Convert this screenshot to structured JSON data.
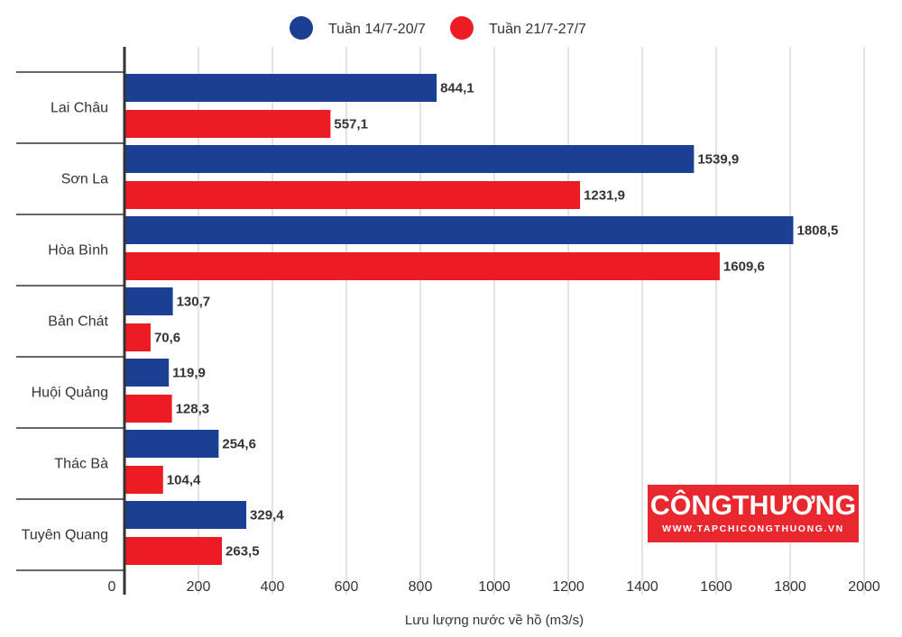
{
  "chart_data": {
    "type": "bar",
    "orientation": "horizontal",
    "categories": [
      "Lai Châu",
      "Sơn La",
      "Hòa Bình",
      "Bản Chát",
      "Huội Quảng",
      "Thác Bà",
      "Tuyên Quang"
    ],
    "series": [
      {
        "name": "Tuần 14/7-20/7",
        "color": "#1a3f93",
        "values": [
          844.1,
          1539.9,
          1808.5,
          130.7,
          119.9,
          254.6,
          329.4
        ],
        "labels": [
          "844,1",
          "1539,9",
          "1808,5",
          "130,7",
          "119,9",
          "254,6",
          "329,4"
        ]
      },
      {
        "name": "Tuần 21/7-27/7",
        "color": "#ed1c24",
        "values": [
          557.1,
          1231.9,
          1609.6,
          70.6,
          128.3,
          104.4,
          263.5
        ],
        "labels": [
          "557,1",
          "1231,9",
          "1609,6",
          "70,6",
          "128,3",
          "104,4",
          "263,5"
        ]
      }
    ],
    "xlabel": "Lưu lượng nước về hồ (m3/s)",
    "xlim": [
      0,
      2000
    ],
    "xticks": [
      0,
      200,
      400,
      600,
      800,
      1000,
      1200,
      1400,
      1600,
      1800,
      2000
    ],
    "xtick_labels": [
      "0",
      "200",
      "400",
      "600",
      "800",
      "1000",
      "1200",
      "1400",
      "1600",
      "1800",
      "2000"
    ],
    "grid": "vertical",
    "legend": "top-center"
  },
  "watermark": {
    "brand": "CÔNGTHƯƠNG",
    "url": "WWW.TAPCHICONGTHUONG.VN"
  }
}
